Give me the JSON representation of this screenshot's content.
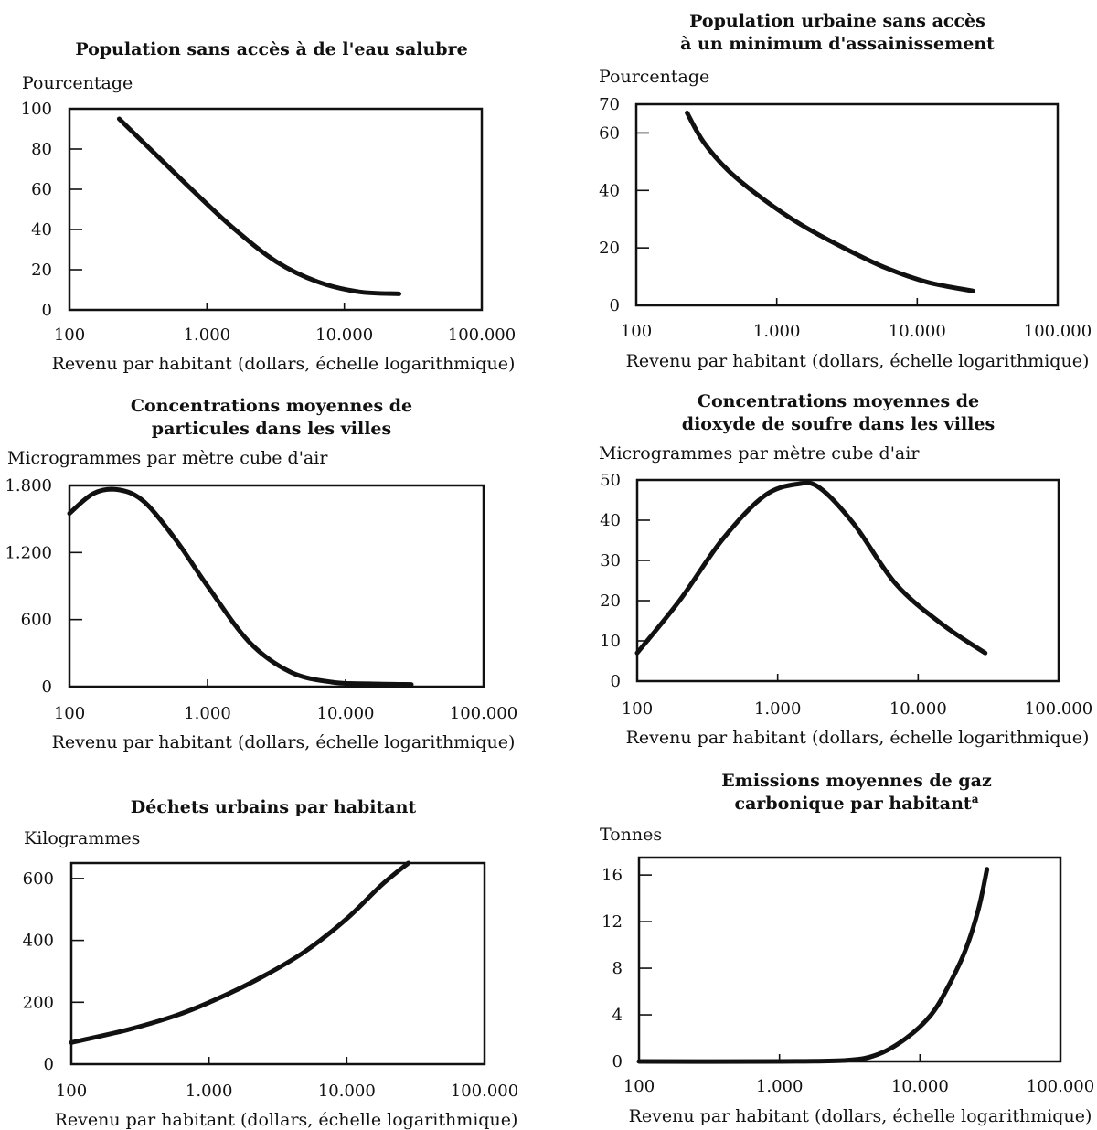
{
  "colors": {
    "ink": "#111111",
    "background": "#ffffff"
  },
  "chart_data": [
    {
      "type": "line",
      "title": [
        "Population sans accès à de l'eau salubre"
      ],
      "ylabel": "Pourcentage",
      "xlabel": "Revenu par habitant (dollars, échelle logarithmique)",
      "xscale": "log",
      "xlim": [
        100,
        100000
      ],
      "ylim": [
        0,
        100
      ],
      "xticks": [
        100,
        1000,
        10000,
        100000
      ],
      "xtick_labels": [
        "100",
        "1.000",
        "10.000",
        "100.000"
      ],
      "yticks": [
        0,
        20,
        40,
        60,
        80,
        100
      ],
      "ytick_labels": [
        "0",
        "20",
        "40",
        "60",
        "80",
        "100"
      ],
      "grid": false,
      "series": [
        {
          "x": [
            230,
            400,
            800,
            1600,
            3200,
            6400,
            12800,
            25000
          ],
          "y": [
            95,
            79,
            59,
            40,
            24,
            14,
            9,
            8
          ]
        }
      ]
    },
    {
      "type": "line",
      "title": [
        "Population urbaine sans accès",
        "à un minimum d'assainissement"
      ],
      "ylabel": "Pourcentage",
      "xlabel": "Revenu par habitant (dollars, échelle logarithmique)",
      "xscale": "log",
      "xlim": [
        100,
        100000
      ],
      "ylim": [
        0,
        70
      ],
      "xticks": [
        100,
        1000,
        10000,
        100000
      ],
      "xtick_labels": [
        "100",
        "1.000",
        "10.000",
        "100.000"
      ],
      "yticks": [
        0,
        20,
        40,
        60,
        70
      ],
      "ytick_labels": [
        "0",
        "20",
        "40",
        "60",
        "70"
      ],
      "grid": false,
      "series": [
        {
          "x": [
            230,
            300,
            450,
            800,
            1500,
            3000,
            6000,
            12000,
            25000
          ],
          "y": [
            67,
            57,
            47,
            37,
            28,
            20,
            13,
            8,
            5
          ]
        }
      ]
    },
    {
      "type": "line",
      "title": [
        "Concentrations moyennes de",
        "particules dans les villes"
      ],
      "ylabel": "Microgrammes par mètre cube d'air",
      "xlabel": "Revenu par habitant (dollars, échelle logarithmique)",
      "xscale": "log",
      "xlim": [
        100,
        100000
      ],
      "ylim": [
        0,
        1800
      ],
      "xticks": [
        100,
        1000,
        10000,
        100000
      ],
      "xtick_labels": [
        "100",
        "1.000",
        "10.000",
        "100.000"
      ],
      "yticks": [
        0,
        600,
        1200,
        1800
      ],
      "ytick_labels": [
        "0",
        "600",
        "1.200",
        "1.800"
      ],
      "grid": false,
      "series": [
        {
          "x": [
            100,
            150,
            230,
            350,
            600,
            1000,
            2000,
            4000,
            8000,
            15000,
            30000
          ],
          "y": [
            1550,
            1730,
            1760,
            1650,
            1300,
            900,
            400,
            130,
            40,
            25,
            20
          ]
        }
      ]
    },
    {
      "type": "line",
      "title": [
        "Concentrations moyennes de",
        "dioxyde de soufre dans les villes"
      ],
      "ylabel": "Microgrammes par mètre cube d'air",
      "xlabel": "Revenu par habitant (dollars, échelle logarithmique)",
      "xscale": "log",
      "xlim": [
        100,
        100000
      ],
      "ylim": [
        0,
        50
      ],
      "xticks": [
        100,
        1000,
        10000,
        100000
      ],
      "xtick_labels": [
        "100",
        "1.000",
        "10.000",
        "100.000"
      ],
      "yticks": [
        0,
        10,
        20,
        30,
        40,
        50
      ],
      "ytick_labels": [
        "0",
        "10",
        "20",
        "30",
        "40",
        "50"
      ],
      "grid": false,
      "series": [
        {
          "x": [
            100,
            200,
            400,
            800,
            1400,
            2000,
            3500,
            7000,
            15000,
            30000
          ],
          "y": [
            7,
            20,
            35,
            46,
            49,
            48,
            39,
            24,
            14,
            7
          ]
        }
      ]
    },
    {
      "type": "line",
      "title": [
        "Déchets urbains par habitant"
      ],
      "ylabel": "Kilogrammes",
      "xlabel": "Revenu par habitant (dollars, échelle logarithmique)",
      "xscale": "log",
      "xlim": [
        100,
        100000
      ],
      "ylim": [
        0,
        650
      ],
      "xticks": [
        100,
        1000,
        10000,
        100000
      ],
      "xtick_labels": [
        "100",
        "1.000",
        "10.000",
        "100.000"
      ],
      "yticks": [
        0,
        200,
        400,
        600
      ],
      "ytick_labels": [
        "0",
        "200",
        "400",
        "600"
      ],
      "grid": false,
      "series": [
        {
          "x": [
            100,
            250,
            600,
            1200,
            2500,
            5000,
            10000,
            18000,
            28000
          ],
          "y": [
            70,
            110,
            160,
            215,
            285,
            365,
            470,
            580,
            650
          ]
        }
      ]
    },
    {
      "type": "line",
      "title": [
        "Emissions moyennes de gaz",
        "carbonique par habitant"
      ],
      "title_superscript": "a",
      "ylabel": "Tonnes",
      "xlabel": "Revenu par habitant (dollars, échelle logarithmique)",
      "xscale": "log",
      "xlim": [
        100,
        100000
      ],
      "ylim": [
        0,
        17.5
      ],
      "xticks": [
        100,
        1000,
        10000,
        100000
      ],
      "xtick_labels": [
        "100",
        "1.000",
        "10.000",
        "100.000"
      ],
      "yticks": [
        0,
        4,
        8,
        12,
        16
      ],
      "ytick_labels": [
        "0",
        "4",
        "8",
        "12",
        "16"
      ],
      "grid": false,
      "series": [
        {
          "x": [
            100,
            1000,
            3000,
            5000,
            8000,
            12000,
            16000,
            21000,
            26000,
            30000
          ],
          "y": [
            0,
            0,
            0.1,
            0.6,
            2,
            4,
            6.5,
            9.5,
            13,
            16.5
          ]
        }
      ]
    }
  ]
}
